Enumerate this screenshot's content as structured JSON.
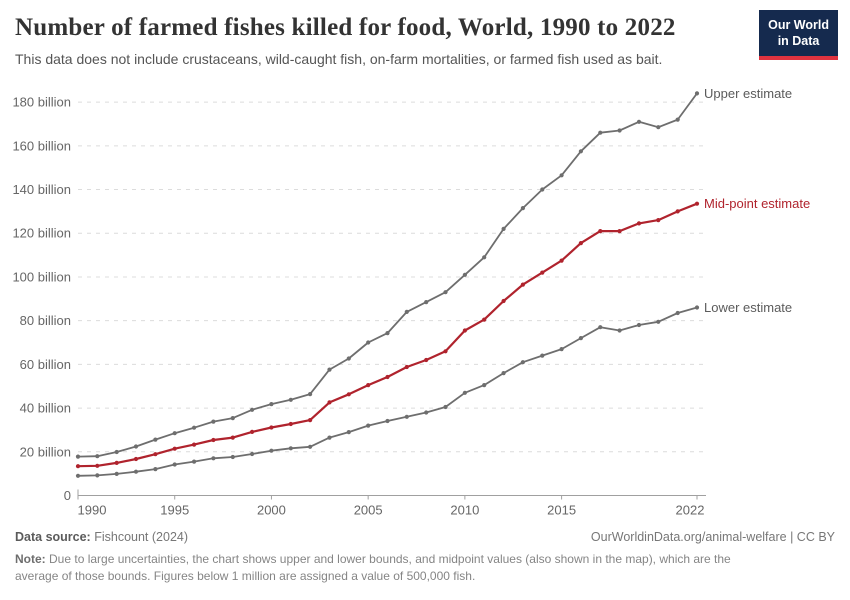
{
  "header": {
    "title": "Number of farmed fishes killed for food, World, 1990 to 2022",
    "subtitle": "This data does not include crustaceans, wild-caught fish, on-farm mortalities, or farmed fish used as bait.",
    "logo": {
      "line1": "Our World",
      "line2": "in Data",
      "bg_color": "#152a4e",
      "accent_color": "#e0333f"
    }
  },
  "chart_data": {
    "type": "line",
    "title": "Number of farmed fishes killed for food, World, 1990 to 2022",
    "xlabel": "",
    "ylabel": "",
    "unit": "billion fish",
    "grid": true,
    "legend_position": "end-of-line",
    "xlim": [
      1990,
      2022
    ],
    "ylim": [
      0,
      190
    ],
    "x": [
      1990,
      1991,
      1992,
      1993,
      1994,
      1995,
      1996,
      1997,
      1998,
      1999,
      2000,
      2001,
      2002,
      2003,
      2004,
      2005,
      2006,
      2007,
      2008,
      2009,
      2010,
      2011,
      2012,
      2013,
      2014,
      2015,
      2016,
      2017,
      2018,
      2019,
      2020,
      2021,
      2022
    ],
    "x_tick_labels": [
      "1990",
      "1995",
      "2000",
      "2005",
      "2010",
      "2015",
      "2022"
    ],
    "x_ticks": [
      1990,
      1995,
      2000,
      2005,
      2010,
      2015,
      2022
    ],
    "y_ticks": [
      0,
      20,
      40,
      60,
      80,
      100,
      120,
      140,
      160,
      180
    ],
    "y_tick_suffix": " billion",
    "series": [
      {
        "name": "Upper estimate",
        "color": "#6e6e6e",
        "label_color": "#5b5b5b",
        "values": [
          17.8,
          18,
          19.9,
          22.4,
          25.6,
          28.5,
          31,
          33.8,
          35.4,
          39.2,
          41.8,
          43.8,
          46.4,
          57.6,
          62.7,
          70,
          74.3,
          84,
          88.5,
          93,
          101,
          109,
          122,
          131.5,
          140,
          146.5,
          157.5,
          166,
          167,
          171,
          168.5,
          172,
          184
        ]
      },
      {
        "name": "Mid-point estimate",
        "color": "#b0232d",
        "label_color": "#b0232d",
        "values": [
          13.4,
          13.6,
          14.9,
          16.7,
          18.9,
          21.4,
          23.3,
          25.4,
          26.5,
          29.1,
          31.1,
          32.7,
          34.5,
          42.6,
          46.3,
          50.5,
          54.2,
          58.8,
          62,
          66,
          75.5,
          80.5,
          89,
          96.5,
          102,
          107.5,
          115.5,
          121,
          121,
          124.5,
          126,
          130,
          133.5
        ]
      },
      {
        "name": "Lower estimate",
        "color": "#6e6e6e",
        "label_color": "#5b5b5b",
        "values": [
          9,
          9.2,
          9.9,
          10.9,
          12.1,
          14.2,
          15.5,
          17,
          17.6,
          19,
          20.5,
          21.6,
          22.3,
          26.5,
          29,
          32,
          34.1,
          36,
          38,
          40.5,
          47,
          50.5,
          56,
          61,
          64,
          67,
          72,
          77,
          75.5,
          78,
          79.5,
          83.5,
          86
        ]
      }
    ],
    "styles": {
      "gridline_color": "#dcdcdc",
      "axis_color": "#a0a0a0",
      "tick_text_color": "#666666"
    }
  },
  "footer": {
    "source_label": "Data source:",
    "source_value": " Fishcount (2024)",
    "link": "OurWorldinData.org/animal-welfare | CC BY",
    "note_label": "Note:",
    "note_text": " Due to large uncertainties, the chart shows upper and lower bounds, and midpoint values (also shown in the map), which are the average of those bounds. Figures below 1 million are assigned a value of 500,000 fish."
  }
}
